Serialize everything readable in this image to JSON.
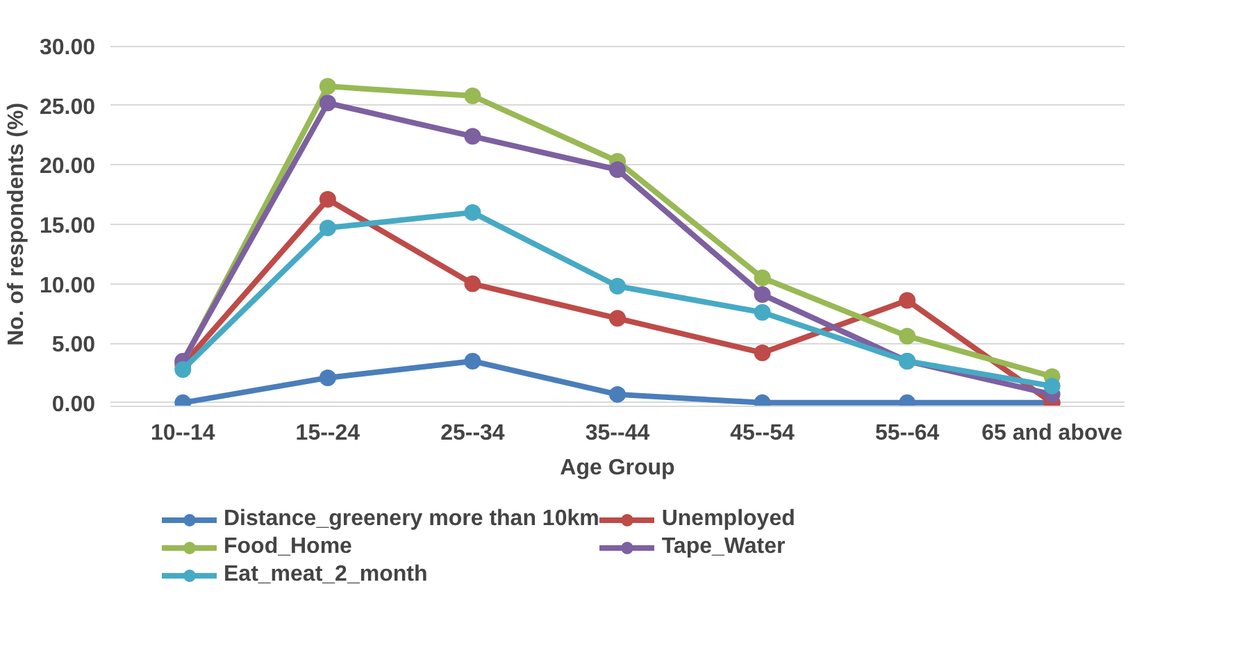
{
  "chart_data": {
    "type": "line",
    "xlabel": "Age Group",
    "ylabel": "No. of respondents (%)",
    "categories": [
      "10--14",
      "15--24",
      "25--34",
      "35--44",
      "45--54",
      "55--64",
      "65 and above"
    ],
    "series": [
      {
        "name": "Distance_greenery more than 10km",
        "color": "#4a7ebb",
        "values": [
          0,
          2.1,
          3.5,
          0.7,
          0,
          0,
          0
        ]
      },
      {
        "name": "Unemployed",
        "color": "#be4b48",
        "values": [
          3.2,
          17.1,
          10.0,
          7.1,
          4.2,
          8.6,
          0
        ]
      },
      {
        "name": "Food_Home",
        "color": "#98b954",
        "values": [
          3.4,
          26.6,
          25.8,
          20.3,
          10.5,
          5.6,
          2.2
        ]
      },
      {
        "name": "Tape_Water",
        "color": "#7d60a0",
        "values": [
          3.5,
          25.2,
          22.4,
          19.6,
          9.1,
          3.5,
          0.7
        ]
      },
      {
        "name": "Eat_meat_2_month",
        "color": "#46aac5",
        "values": [
          2.8,
          14.7,
          16.0,
          9.8,
          7.6,
          3.5,
          1.4
        ]
      }
    ],
    "ylim": [
      0,
      30
    ],
    "yticks": [
      {
        "value": 0,
        "label": "0.00"
      },
      {
        "value": 5,
        "label": "5.00"
      },
      {
        "value": 10,
        "label": "10.00"
      },
      {
        "value": 15,
        "label": "15.00"
      },
      {
        "value": 20,
        "label": "20.00"
      },
      {
        "value": 25,
        "label": "25.00"
      },
      {
        "value": 30,
        "label": "30.00"
      }
    ],
    "grid": "y",
    "legend": "bottom",
    "marker": "circle",
    "line_style": "solid"
  }
}
